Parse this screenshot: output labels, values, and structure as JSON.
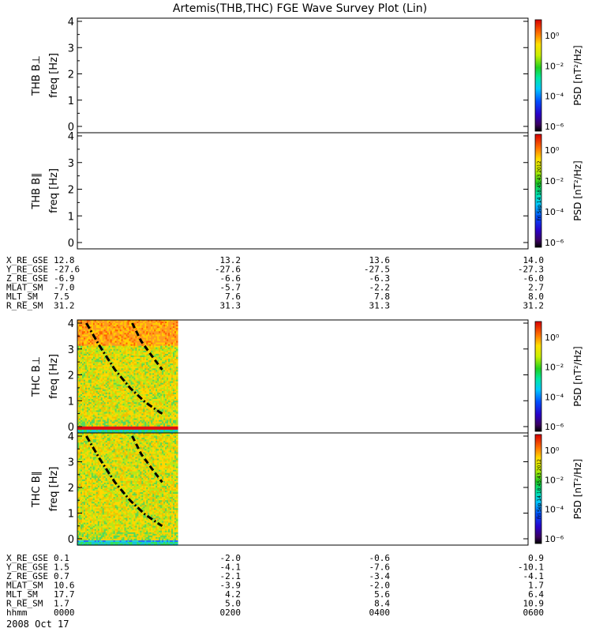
{
  "title": "Artemis(THB,THC) FGE Wave Survey Plot (Lin)",
  "colorbar": {
    "label": "PSD [nT²/Hz]",
    "tick_labels": [
      "10⁰",
      "10⁻²",
      "10⁻⁴",
      "10⁻⁶"
    ],
    "stamp": "Fri Sep 14 18:45:43 2012"
  },
  "chart_data": [
    {
      "type": "heatmap",
      "probe_label": "THB B⊥",
      "ylabel": "freq [Hz]",
      "ylim": [
        0,
        4
      ],
      "y_ticks": [
        "0",
        "1",
        "2",
        "3",
        "4"
      ],
      "data_present": false
    },
    {
      "type": "heatmap",
      "probe_label": "THB B∥",
      "ylabel": "freq [Hz]",
      "ylim": [
        0,
        4
      ],
      "y_ticks": [
        "0",
        "1",
        "2",
        "3",
        "4"
      ],
      "data_present": false
    },
    {
      "type": "heatmap",
      "probe_label": "THC B⊥",
      "ylabel": "freq [Hz]",
      "ylim": [
        0,
        4
      ],
      "y_ticks": [
        "0",
        "1",
        "2",
        "3",
        "4"
      ],
      "data_present": true,
      "x_range_hhmm": [
        "0000",
        "0600"
      ],
      "data_end_hhmm": "0110",
      "curves": [
        {
          "style": "dash-dot",
          "x_hhmm": [
            0.12,
            0.3,
            0.5,
            0.7,
            0.9,
            1.1,
            1.13
          ],
          "y": [
            4.0,
            3.1,
            2.2,
            1.5,
            0.95,
            0.55,
            0.5
          ]
        },
        {
          "style": "dashed",
          "x_hhmm": [
            0.73,
            0.85,
            1.0,
            1.13
          ],
          "y": [
            4.0,
            3.3,
            2.7,
            2.2
          ]
        }
      ]
    },
    {
      "type": "heatmap",
      "probe_label": "THC B∥",
      "ylabel": "freq [Hz]",
      "ylim": [
        0,
        4
      ],
      "y_ticks": [
        "0",
        "1",
        "2",
        "3",
        "4"
      ],
      "data_present": true,
      "x_range_hhmm": [
        "0000",
        "0600"
      ],
      "data_end_hhmm": "0110",
      "curves": [
        {
          "style": "dash-dot",
          "x_hhmm": [
            0.12,
            0.3,
            0.5,
            0.7,
            0.9,
            1.1,
            1.13
          ],
          "y": [
            4.0,
            3.1,
            2.2,
            1.5,
            0.95,
            0.55,
            0.5
          ]
        },
        {
          "style": "dashed",
          "x_hhmm": [
            0.73,
            0.85,
            1.0,
            1.13
          ],
          "y": [
            4.0,
            3.3,
            2.7,
            2.2
          ]
        }
      ]
    }
  ],
  "ephemeris_thb": {
    "labels": [
      "X_RE_GSE",
      "Y_RE_GSE",
      "Z_RE_GSE",
      "MLAT_SM",
      "MLT_SM",
      "R_RE_SM"
    ],
    "columns": [
      [
        "12.8",
        "-27.6",
        "-6.9",
        "-7.0",
        "7.5",
        "31.2"
      ],
      [
        "13.2",
        "-27.6",
        "-6.6",
        "-5.7",
        "7.6",
        "31.3"
      ],
      [
        "13.6",
        "-27.5",
        "-6.3",
        "-2.2",
        "7.8",
        "31.3"
      ],
      [
        "14.0",
        "-27.3",
        "-6.0",
        "2.7",
        "8.0",
        "31.2"
      ]
    ]
  },
  "ephemeris_thc": {
    "labels": [
      "X_RE_GSE",
      "Y_RE_GSE",
      "Z_RE_GSE",
      "MLAT_SM",
      "MLT_SM",
      "R_RE_SM",
      "hhmm"
    ],
    "columns": [
      [
        "0.1",
        "1.5",
        "0.7",
        "10.6",
        "17.7",
        "1.7",
        "0000"
      ],
      [
        "-2.0",
        "-4.1",
        "-2.1",
        "-3.9",
        "4.2",
        "5.0",
        "0200"
      ],
      [
        "-0.6",
        "-7.6",
        "-3.4",
        "-2.0",
        "5.6",
        "8.4",
        "0400"
      ],
      [
        "0.9",
        "-10.1",
        "-4.1",
        "1.7",
        "6.4",
        "10.9",
        "0600"
      ]
    ]
  },
  "date_label": "2008 Oct 17"
}
